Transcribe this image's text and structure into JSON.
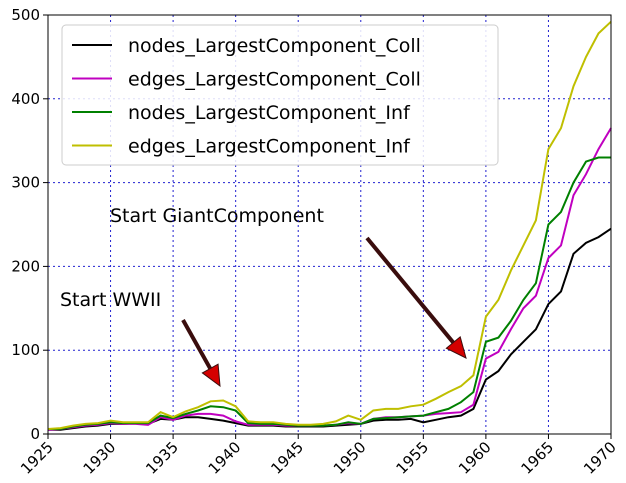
{
  "chart_data": {
    "type": "line",
    "x": [
      1925,
      1926,
      1927,
      1928,
      1929,
      1930,
      1931,
      1932,
      1933,
      1934,
      1935,
      1936,
      1937,
      1938,
      1939,
      1940,
      1941,
      1942,
      1943,
      1944,
      1945,
      1946,
      1947,
      1948,
      1949,
      1950,
      1951,
      1952,
      1953,
      1954,
      1955,
      1956,
      1957,
      1958,
      1959,
      1960,
      1961,
      1962,
      1963,
      1964,
      1965,
      1966,
      1967,
      1968,
      1969,
      1970
    ],
    "series": [
      {
        "name": "nodes_LargestComponent_Coll",
        "color": "#000000",
        "values": [
          5,
          5,
          7,
          9,
          10,
          12,
          12,
          13,
          12,
          18,
          17,
          20,
          20,
          18,
          16,
          13,
          10,
          10,
          10,
          9,
          9,
          9,
          9,
          10,
          11,
          12,
          16,
          17,
          17,
          18,
          14,
          17,
          20,
          22,
          30,
          65,
          75,
          95,
          110,
          125,
          155,
          170,
          215,
          228,
          235,
          245
        ]
      },
      {
        "name": "edges_LargestComponent_Coll",
        "color": "#c000c0",
        "values": [
          5,
          6,
          8,
          10,
          11,
          13,
          12,
          12,
          11,
          20,
          17,
          22,
          24,
          24,
          22,
          15,
          11,
          11,
          11,
          10,
          10,
          10,
          10,
          11,
          13,
          12,
          18,
          20,
          20,
          21,
          22,
          24,
          25,
          26,
          35,
          90,
          98,
          125,
          150,
          165,
          210,
          225,
          285,
          310,
          340,
          365
        ]
      },
      {
        "name": "nodes_LargestComponent_Inf",
        "color": "#008000",
        "values": [
          6,
          6,
          9,
          11,
          12,
          14,
          13,
          13,
          13,
          22,
          19,
          24,
          28,
          33,
          32,
          28,
          13,
          12,
          12,
          11,
          10,
          10,
          10,
          11,
          14,
          12,
          18,
          19,
          20,
          21,
          22,
          26,
          30,
          38,
          50,
          110,
          115,
          135,
          160,
          180,
          250,
          265,
          300,
          325,
          330,
          330
        ]
      },
      {
        "name": "edges_LargestComponent_Inf",
        "color": "#bfbf00",
        "values": [
          6,
          7,
          10,
          12,
          13,
          16,
          14,
          14,
          14,
          26,
          20,
          27,
          32,
          39,
          40,
          33,
          15,
          14,
          14,
          12,
          11,
          11,
          12,
          15,
          22,
          17,
          28,
          30,
          30,
          33,
          35,
          42,
          50,
          57,
          70,
          140,
          160,
          195,
          225,
          255,
          340,
          365,
          415,
          450,
          478,
          492
        ]
      }
    ],
    "xlim": [
      1925,
      1970
    ],
    "xticks": [
      1925,
      1930,
      1935,
      1940,
      1945,
      1950,
      1955,
      1960,
      1965,
      1970
    ],
    "ylim": [
      0,
      500
    ],
    "yticks": [
      0,
      100,
      200,
      300,
      400,
      500
    ],
    "grid": true,
    "legend": "upper left",
    "annotations": [
      "Start GiantComponent",
      "Start WWII"
    ]
  }
}
